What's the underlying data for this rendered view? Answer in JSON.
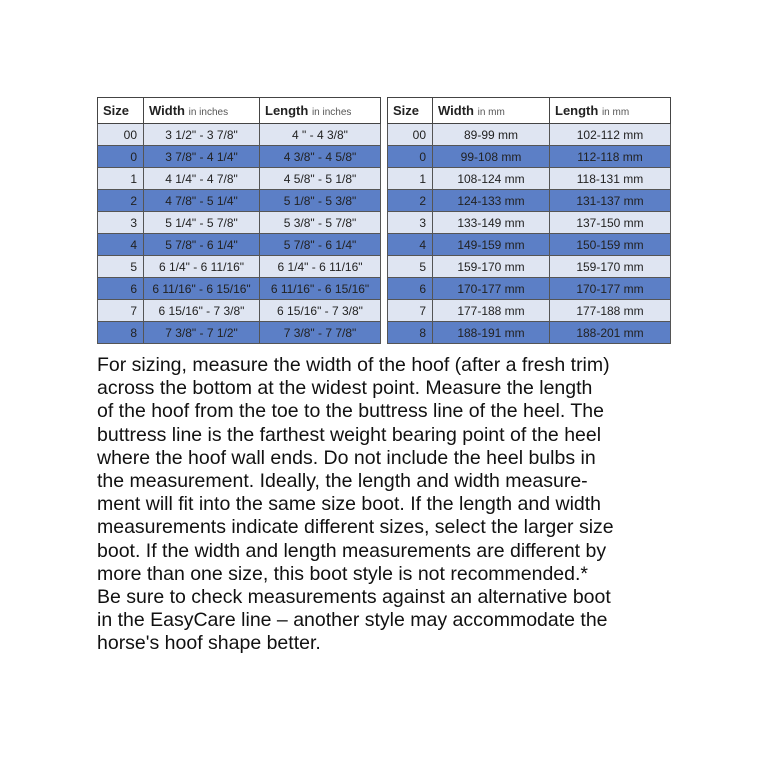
{
  "inches_table": {
    "headers": {
      "size": "Size",
      "width": "Width",
      "width_unit": "in inches",
      "length": "Length",
      "length_unit": "in inches"
    },
    "rows": [
      {
        "size": "00",
        "width": "3 1/2\" - 3 7/8\"",
        "length": "4 \" - 4 3/8\""
      },
      {
        "size": "0",
        "width": "3 7/8\" - 4 1/4\"",
        "length": "4 3/8\" - 4 5/8\""
      },
      {
        "size": "1",
        "width": "4 1/4\" - 4 7/8\"",
        "length": "4 5/8\" - 5 1/8\""
      },
      {
        "size": "2",
        "width": "4 7/8\" - 5 1/4\"",
        "length": "5 1/8\" - 5 3/8\""
      },
      {
        "size": "3",
        "width": "5 1/4\" - 5 7/8\"",
        "length": "5 3/8\" - 5 7/8\""
      },
      {
        "size": "4",
        "width": "5 7/8\" - 6 1/4\"",
        "length": "5 7/8\" - 6 1/4\""
      },
      {
        "size": "5",
        "width": "6 1/4\" - 6 11/16\"",
        "length": "6 1/4\" - 6 11/16\""
      },
      {
        "size": "6",
        "width": "6 11/16\" - 6 15/16\"",
        "length": "6 11/16\" - 6 15/16\""
      },
      {
        "size": "7",
        "width": "6 15/16\" - 7 3/8\"",
        "length": "6 15/16\" - 7 3/8\""
      },
      {
        "size": "8",
        "width": "7 3/8\" - 7 1/2\"",
        "length": "7 3/8\" - 7 7/8\""
      }
    ]
  },
  "mm_table": {
    "headers": {
      "size": "Size",
      "width": "Width",
      "width_unit": "in mm",
      "length": "Length",
      "length_unit": "in mm"
    },
    "rows": [
      {
        "size": "00",
        "width": "89-99 mm",
        "length": "102-112 mm"
      },
      {
        "size": "0",
        "width": "99-108 mm",
        "length": "112-118 mm"
      },
      {
        "size": "1",
        "width": "108-124 mm",
        "length": "118-131 mm"
      },
      {
        "size": "2",
        "width": "124-133 mm",
        "length": "131-137 mm"
      },
      {
        "size": "3",
        "width": "133-149 mm",
        "length": "137-150 mm"
      },
      {
        "size": "4",
        "width": "149-159 mm",
        "length": "150-159 mm"
      },
      {
        "size": "5",
        "width": "159-170 mm",
        "length": "159-170 mm"
      },
      {
        "size": "6",
        "width": "170-177 mm",
        "length": "170-177 mm"
      },
      {
        "size": "7",
        "width": "177-188 mm",
        "length": "177-188 mm"
      },
      {
        "size": "8",
        "width": "188-191 mm",
        "length": "188-201 mm"
      }
    ]
  },
  "colors": {
    "row_light": "#dfe5f2",
    "row_dark": "#5c7fc6"
  },
  "instructions": [
    "For sizing, measure the width of the hoof (after a fresh trim)",
    "across the bottom at the widest point. Measure the length",
    "of the hoof from the toe to the buttress line of the heel. The",
    "buttress line is the farthest weight bearing point of the heel",
    "where the hoof wall ends. Do not include the heel bulbs in",
    "the measurement. Ideally, the length and width measure-",
    "ment will fit into the same size boot. If the length and width",
    "measurements indicate different sizes, select the larger size",
    "boot. If the width and length measurements are different by",
    "more than one size, this boot style is not recommended.*",
    "Be sure to check measurements against an alternative boot",
    "in the EasyCare line – another style may accommodate the",
    "horse's hoof shape better."
  ]
}
